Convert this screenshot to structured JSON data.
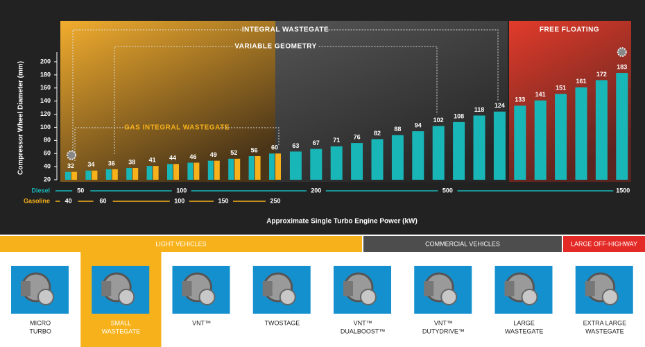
{
  "chart_data": {
    "type": "bar",
    "ylabel": "Compressor Wheel Diameter (mm)",
    "xlabel": "Approximate Single Turbo Engine Power (kW)",
    "ylim": [
      20,
      200
    ],
    "yticks": [
      20,
      40,
      60,
      80,
      100,
      120,
      140,
      160,
      180,
      200
    ],
    "series": [
      {
        "name": "Diesel",
        "color": "#19b6b8",
        "values": [
          32,
          34,
          36,
          38,
          41,
          44,
          46,
          49,
          52,
          56,
          60,
          63,
          67,
          71,
          76,
          82,
          88,
          94,
          102,
          108,
          118,
          124,
          133,
          141,
          151,
          161,
          172,
          183
        ]
      },
      {
        "name": "Gasoline",
        "color": "#f7b21b",
        "values": [
          32,
          34,
          36,
          38,
          41,
          44,
          46,
          49,
          52,
          56,
          60,
          null,
          null,
          null,
          null,
          null,
          null,
          null,
          null,
          null,
          null,
          null,
          null,
          null,
          null,
          null,
          null,
          null
        ]
      }
    ],
    "diesel_ticks": [
      50,
      100,
      200,
      500,
      1500
    ],
    "gasoline_ticks": [
      40,
      60,
      100,
      150,
      250
    ],
    "annotations": [
      "INTEGRAL WASTEGATE",
      "VARIABLE GEOMETRY",
      "GAS INTEGRAL WASTEGATE",
      "FREE FLOATING"
    ]
  },
  "segments": [
    "LIGHT VEHICLES",
    "COMMERCIAL VEHICLES",
    "LARGE OFF-HIGHWAY"
  ],
  "products": [
    {
      "lines": [
        "MICRO",
        "TURBO"
      ]
    },
    {
      "lines": [
        "SMALL",
        "WASTEGATE"
      ]
    },
    {
      "lines": [
        "VNT™"
      ]
    },
    {
      "lines": [
        "TWOSTAGE"
      ]
    },
    {
      "lines": [
        "VNT™",
        "DUALBOOST™"
      ]
    },
    {
      "lines": [
        "VNT™",
        "DUTYDRIVE™"
      ]
    },
    {
      "lines": [
        "LARGE",
        "WASTEGATE"
      ]
    },
    {
      "lines": [
        "EXTRA LARGE",
        "WASTEGATE"
      ]
    }
  ],
  "selected_product": 1
}
